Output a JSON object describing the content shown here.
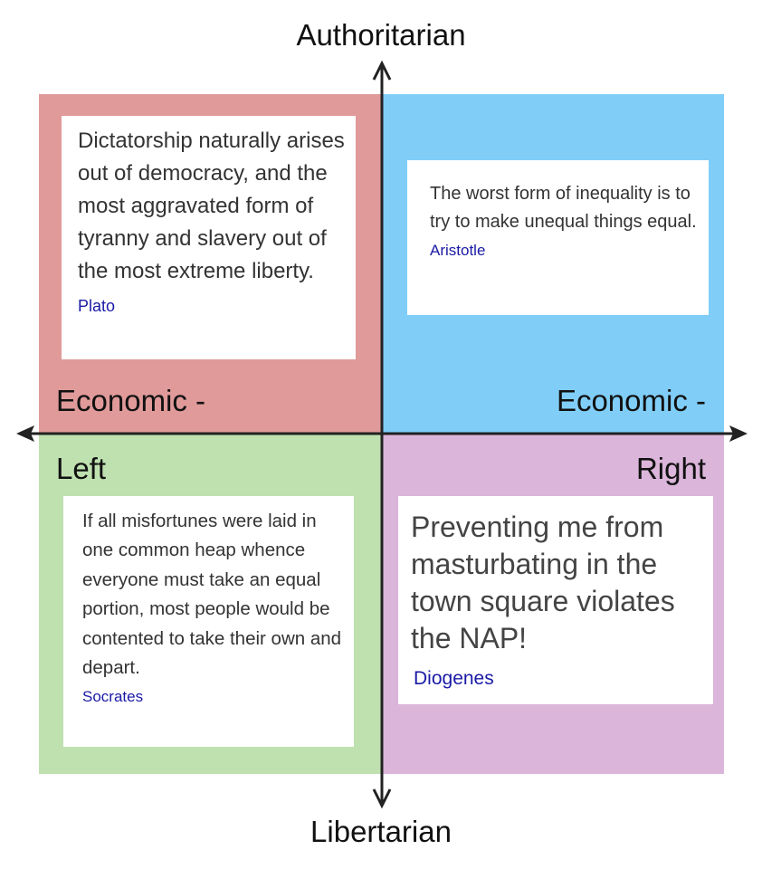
{
  "axes": {
    "top": "Authoritarian",
    "bottom": "Libertarian",
    "upper_left_label": "Economic -",
    "upper_right_label": "Economic -",
    "left": "Left",
    "right": "Right"
  },
  "colors": {
    "top_left": "#e09a9a",
    "top_right": "#80cef8",
    "bottom_left": "#bfe1b0",
    "bottom_right": "#dbb5da",
    "author": "#1a1aa6"
  },
  "quotes": [
    {
      "text": "Dictatorship naturally arises out of democracy, and the most aggravated form of tyranny and slavery out of the most extreme liberty.",
      "author": "Plato"
    },
    {
      "text": "The worst form of inequality is to try to make unequal things equal.",
      "author": "Aristotle"
    },
    {
      "text": "If all misfortunes were laid in one common heap whence everyone must take an equal portion, most people would be contented to take their own and depart.",
      "author": "Socrates"
    },
    {
      "text": "Preventing me from masturbating in the town square violates the NAP!",
      "author": "Diogenes"
    }
  ]
}
